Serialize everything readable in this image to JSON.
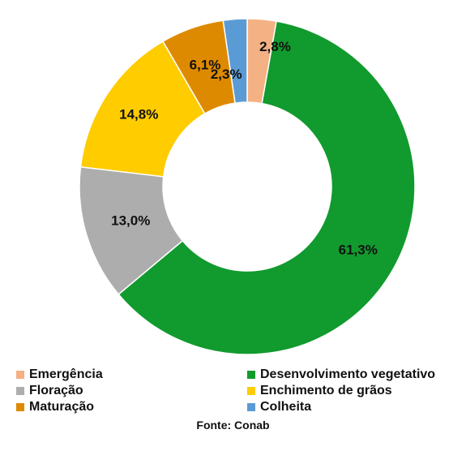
{
  "chart_data": {
    "type": "pie",
    "subtype": "donut",
    "categories": [
      "Emergência",
      "Desenvolvimento vegetativo",
      "Floração",
      "Enchimento de grãos",
      "Maturação",
      "Colheita"
    ],
    "values": [
      2.8,
      61.3,
      13.0,
      14.8,
      6.1,
      2.3
    ],
    "labels": [
      "2,8%",
      "61,3%",
      "13,0%",
      "14,8%",
      "6,1%",
      "2,3%"
    ],
    "colors": [
      "#F4B183",
      "#119A2E",
      "#ADADAD",
      "#FFCC00",
      "#DE8A00",
      "#5B9BD5"
    ],
    "legend_position": "bottom",
    "start": "top, clockwise",
    "title": "",
    "source": "Fonte: Conab"
  }
}
